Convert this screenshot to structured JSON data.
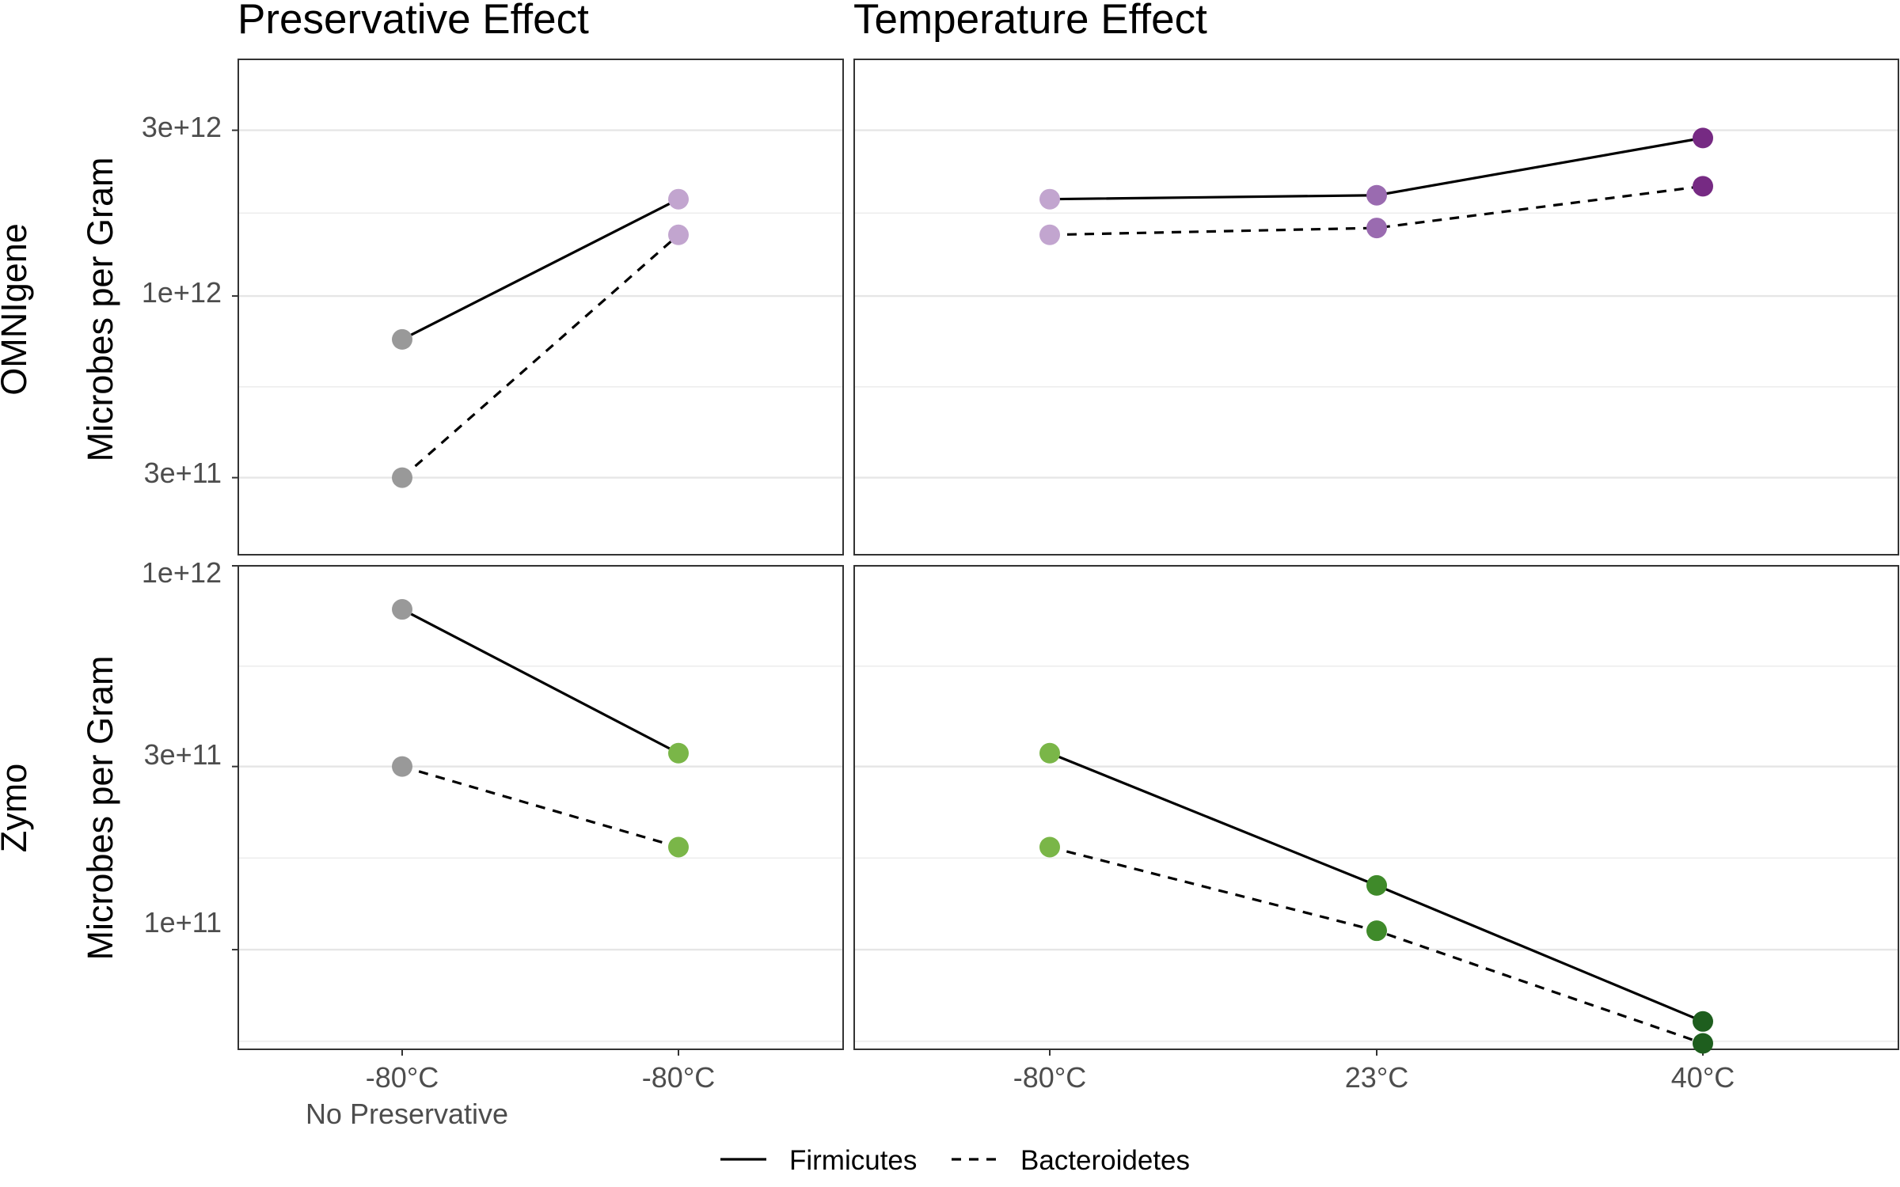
{
  "chart_data": {
    "type": "line",
    "facet_columns": [
      {
        "title": "Preservative Effect",
        "categories": [
          "-80°C",
          "-80°C"
        ],
        "category_sublabels": [
          "No Preservative",
          ""
        ]
      },
      {
        "title": "Temperature Effect",
        "categories": [
          "-80°C",
          "23°C",
          "40°C"
        ],
        "category_sublabels": [
          "",
          "",
          ""
        ]
      }
    ],
    "facet_rows": [
      {
        "label": "OMNIgene",
        "ylabel": "Microbes per Gram",
        "yscale": "log10",
        "ylim": [
          180000000000,
          4800000000000
        ],
        "yticks": [
          300000000000,
          1000000000000,
          3000000000000
        ],
        "ytick_labels": [
          "3e+11",
          "1e+12",
          "3e+12"
        ]
      },
      {
        "label": "Zymo",
        "ylabel": "Microbes per Gram",
        "yscale": "log10",
        "ylim": [
          55000000000,
          1000000000000
        ],
        "yticks": [
          100000000000,
          300000000000,
          1000000000000
        ],
        "ytick_labels": [
          "1e+11",
          "3e+11",
          "1e+12"
        ]
      }
    ],
    "panels": [
      {
        "row": 0,
        "col": 0,
        "series": [
          {
            "name": "Firmicutes",
            "values": [
              750000000000,
              1900000000000
            ],
            "colors": [
              "#999999",
              "#c2a5cf"
            ]
          },
          {
            "name": "Bacteroidetes",
            "values": [
              300000000000,
              1500000000000
            ],
            "colors": [
              "#999999",
              "#c2a5cf"
            ]
          }
        ]
      },
      {
        "row": 0,
        "col": 1,
        "series": [
          {
            "name": "Firmicutes",
            "values": [
              1900000000000,
              1950000000000,
              2850000000000
            ],
            "colors": [
              "#c2a5cf",
              "#9a6bb0",
              "#762a83"
            ]
          },
          {
            "name": "Bacteroidetes",
            "values": [
              1500000000000,
              1570000000000,
              2070000000000
            ],
            "colors": [
              "#c2a5cf",
              "#9a6bb0",
              "#762a83"
            ]
          }
        ]
      },
      {
        "row": 1,
        "col": 0,
        "series": [
          {
            "name": "Firmicutes",
            "values": [
              770000000000,
              325000000000
            ],
            "colors": [
              "#999999",
              "#7ab648"
            ]
          },
          {
            "name": "Bacteroidetes",
            "values": [
              300000000000,
              185000000000
            ],
            "colors": [
              "#999999",
              "#7ab648"
            ]
          }
        ]
      },
      {
        "row": 1,
        "col": 1,
        "series": [
          {
            "name": "Firmicutes",
            "values": [
              325000000000,
              147000000000,
              65000000000
            ],
            "colors": [
              "#7ab648",
              "#3f8a2a",
              "#1e5e1e"
            ]
          },
          {
            "name": "Bacteroidetes",
            "values": [
              185000000000,
              112000000000,
              57000000000
            ],
            "colors": [
              "#7ab648",
              "#3f8a2a",
              "#1e5e1e"
            ]
          }
        ]
      }
    ],
    "legend": {
      "position": "bottom",
      "entries": [
        {
          "name": "Firmicutes",
          "linetype": "solid"
        },
        {
          "name": "Bacteroidetes",
          "linetype": "dashed"
        }
      ]
    },
    "grid": true
  }
}
